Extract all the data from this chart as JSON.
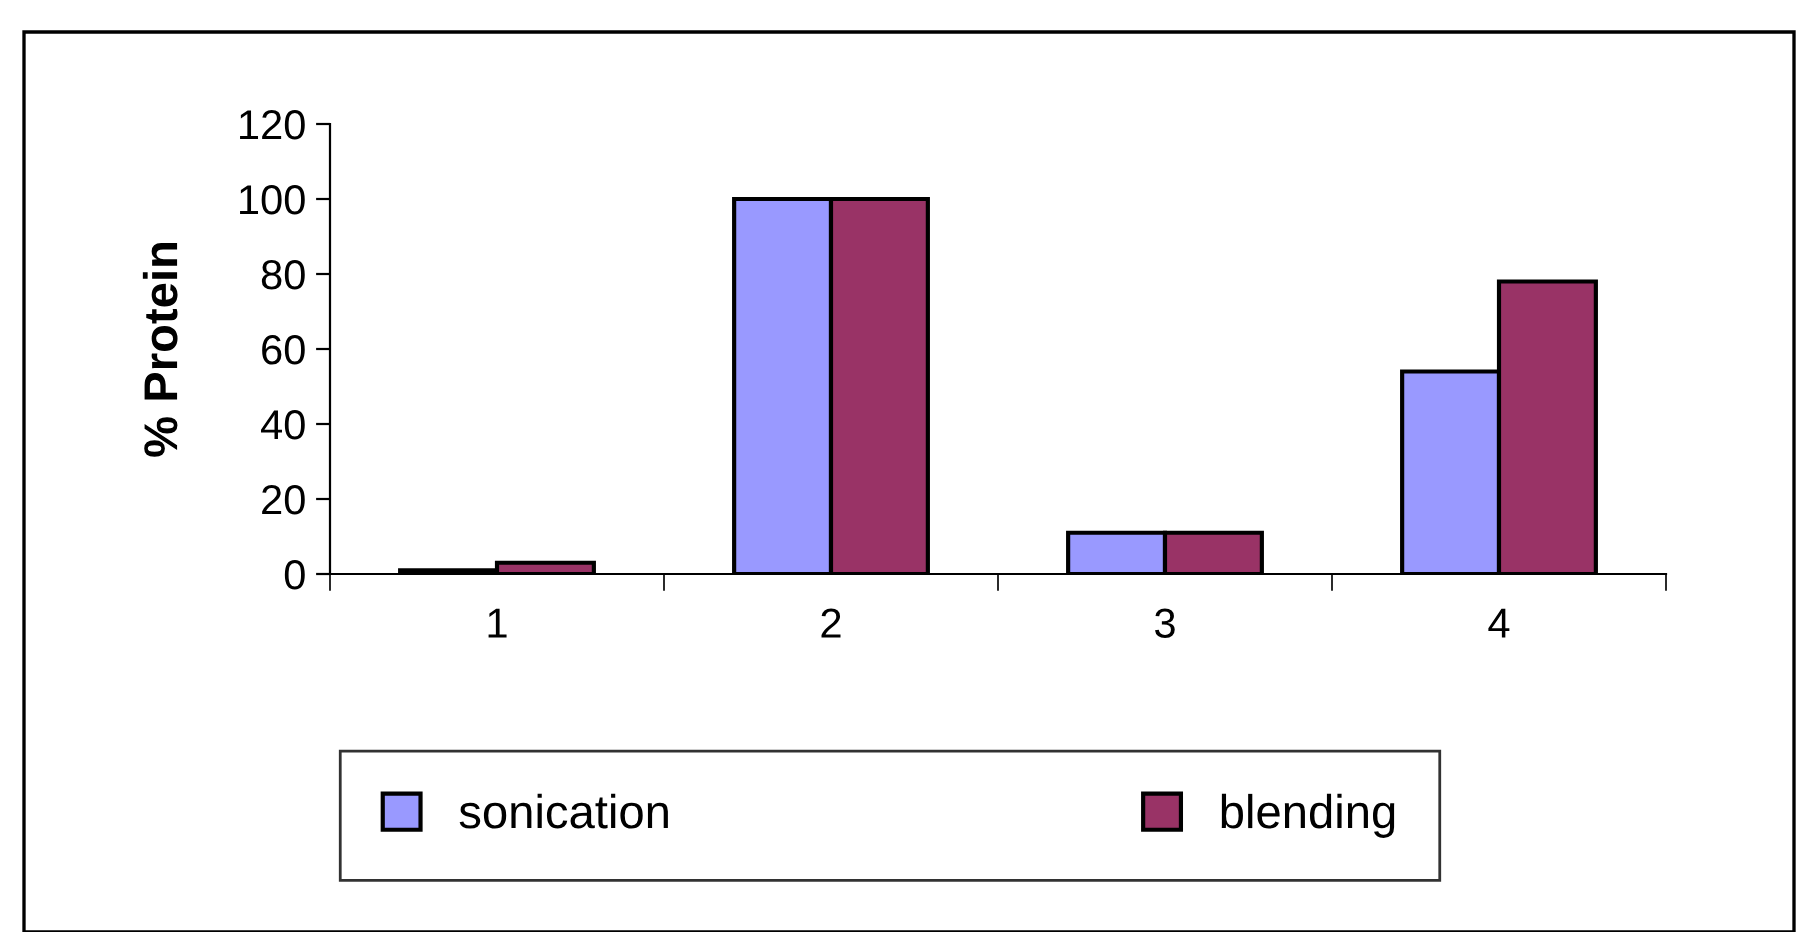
{
  "chart_data": {
    "type": "bar",
    "ylabel": "% Protein",
    "categories": [
      "1",
      "2",
      "3",
      "4"
    ],
    "series": [
      {
        "name": "sonication",
        "color": "#9999ff",
        "values": [
          1,
          100,
          11,
          54
        ]
      },
      {
        "name": "blending",
        "color": "#993366",
        "values": [
          3,
          100,
          11,
          78
        ]
      }
    ],
    "ylim": [
      0,
      120
    ],
    "yticks": [
      0,
      20,
      40,
      60,
      80,
      100,
      120
    ],
    "grid": false,
    "legend": "bottom"
  }
}
